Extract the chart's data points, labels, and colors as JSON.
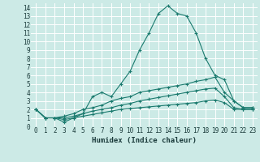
{
  "xlabel": "Humidex (Indice chaleur)",
  "bg_color": "#cceae6",
  "grid_color": "#ffffff",
  "line_color": "#1a7a6e",
  "xlim": [
    -0.5,
    23.5
  ],
  "ylim": [
    0,
    14.5
  ],
  "xticks": [
    0,
    1,
    2,
    3,
    4,
    5,
    6,
    7,
    8,
    9,
    10,
    11,
    12,
    13,
    14,
    15,
    16,
    17,
    18,
    19,
    20,
    21,
    22,
    23
  ],
  "yticks": [
    0,
    1,
    2,
    3,
    4,
    5,
    6,
    7,
    8,
    9,
    10,
    11,
    12,
    13,
    14
  ],
  "lines": [
    {
      "x": [
        0,
        1,
        2,
        3,
        4,
        5,
        6,
        7,
        8,
        9,
        10,
        11,
        12,
        13,
        14,
        15,
        16,
        17,
        18,
        19,
        20,
        21,
        22,
        23
      ],
      "y": [
        2,
        1,
        1,
        0.5,
        1,
        1.5,
        3.5,
        4,
        3.5,
        5,
        6.5,
        9,
        11,
        13.3,
        14.2,
        13.3,
        13,
        11,
        8,
        6,
        5.5,
        3,
        2.2,
        2.2
      ]
    },
    {
      "x": [
        0,
        1,
        2,
        3,
        4,
        5,
        6,
        7,
        8,
        9,
        10,
        11,
        12,
        13,
        14,
        15,
        16,
        17,
        18,
        19,
        20,
        21,
        22,
        23
      ],
      "y": [
        2,
        1,
        1,
        1.2,
        1.5,
        2,
        2.2,
        2.5,
        3,
        3.3,
        3.5,
        4,
        4.2,
        4.4,
        4.6,
        4.8,
        5,
        5.3,
        5.5,
        5.8,
        4,
        3,
        2.2,
        2.2
      ]
    },
    {
      "x": [
        0,
        1,
        2,
        3,
        4,
        5,
        6,
        7,
        8,
        9,
        10,
        11,
        12,
        13,
        14,
        15,
        16,
        17,
        18,
        19,
        20,
        21,
        22,
        23
      ],
      "y": [
        2,
        1,
        1,
        1.0,
        1.2,
        1.5,
        1.8,
        2.0,
        2.2,
        2.5,
        2.7,
        3.0,
        3.2,
        3.4,
        3.6,
        3.8,
        4.0,
        4.2,
        4.4,
        4.5,
        3.5,
        2.2,
        2.0,
        2.0
      ]
    },
    {
      "x": [
        0,
        1,
        2,
        3,
        4,
        5,
        6,
        7,
        8,
        9,
        10,
        11,
        12,
        13,
        14,
        15,
        16,
        17,
        18,
        19,
        20,
        21,
        22,
        23
      ],
      "y": [
        2,
        1,
        1,
        0.8,
        1.0,
        1.2,
        1.4,
        1.6,
        1.8,
        2.0,
        2.1,
        2.2,
        2.3,
        2.4,
        2.5,
        2.6,
        2.7,
        2.8,
        3.0,
        3.1,
        2.8,
        2.0,
        2.0,
        2.0
      ]
    }
  ]
}
